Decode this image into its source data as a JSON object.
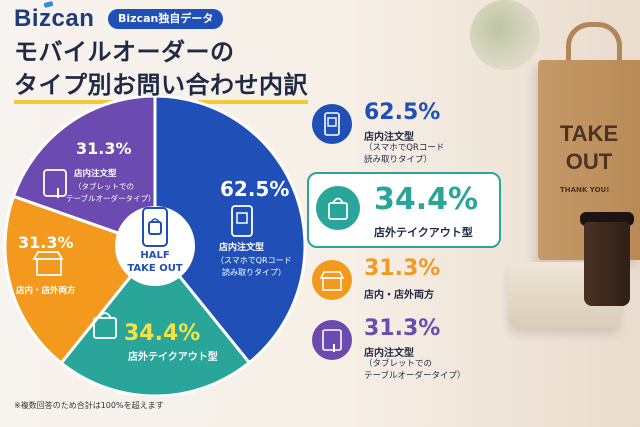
{
  "brand": "Bizcan",
  "badge": "Bizcan独自データ",
  "title_line1": "モバイルオーダーの",
  "title_line2": "タイプ別お問い合わせ内訳",
  "center_label_line1": "HALF",
  "center_label_line2": "TAKE OUT",
  "footnote": "※複数回答のため合計は100%を超えます",
  "bag_text_line1": "TAKE",
  "bag_text_line2": "OUT",
  "bag_sub": "THANK YOU!",
  "colors": {
    "blue": "#1f4fb7",
    "teal": "#2aa59a",
    "orange": "#f39a1e",
    "purple": "#6c4bb0",
    "yellow": "#f3e341"
  },
  "chart_data": {
    "type": "pie",
    "unit": "%",
    "series": [
      {
        "name": "店内注文型",
        "sub_lines": [
          "（スマホでQRコード",
          "読み取りタイプ）"
        ],
        "pct_label": "62.5",
        "value": 62.5,
        "color": "#1f4fb7",
        "icon": "qr-phone-icon"
      },
      {
        "name": "店外テイクアウト型",
        "sub_lines": [],
        "pct_label": "34.4",
        "value": 34.4,
        "color": "#2aa59a",
        "icon": "shopping-bag-icon"
      },
      {
        "name": "店内・店外両方",
        "sub_lines": [],
        "pct_label": "31.3",
        "value": 31.3,
        "color": "#f39a1e",
        "icon": "storefront-icon"
      },
      {
        "name": "店内注文型",
        "sub_lines": [
          "（タブレットでの",
          "テーブルオーダータイプ）"
        ],
        "pct_label": "31.3",
        "value": 31.3,
        "color": "#6c4bb0",
        "icon": "tablet-touch-icon"
      }
    ]
  }
}
